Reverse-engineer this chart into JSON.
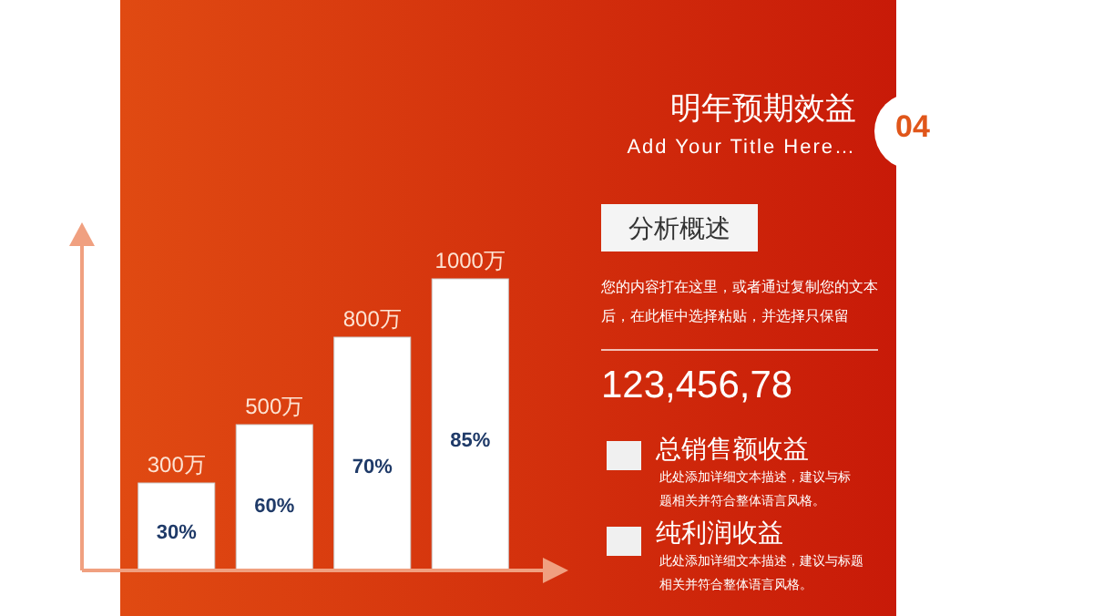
{
  "chart_data": {
    "type": "bar",
    "title": "明年预期效益",
    "subtitle": "Add Your Title Here…",
    "categories": [
      null,
      null,
      null,
      null
    ],
    "series": [
      {
        "color": "#ffffff",
        "values": [
          300,
          500,
          800,
          1000
        ],
        "value_labels": [
          "300万",
          "500万",
          "800万",
          "1000万"
        ]
      }
    ],
    "annotations": [
      "04",
      "分析概述",
      "您的内容打在这里，或者通过复制您的文本后，在此框中选择粘贴，并选择只保留",
      "123,456,78",
      "总销售额收益",
      "此处添加详细文本描述，建议与标题相关并符合整体语言风格。",
      "纯利润收益",
      "此处添加详细文本描述，建议与标题相关并符合整体语言风格。",
      "30%",
      "60%",
      "70%",
      "85%"
    ]
  }
}
